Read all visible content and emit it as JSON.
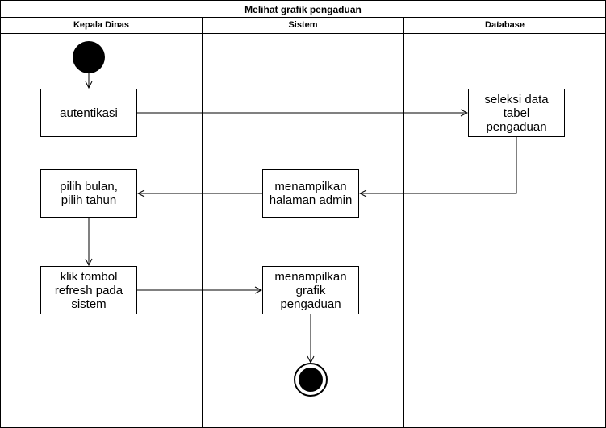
{
  "title": "Melihat grafik pengaduan",
  "lanes": [
    "Kepala Dinas",
    "Sistem",
    "Database"
  ],
  "activities": {
    "autentikasi": "autentikasi",
    "seleksi": "seleksi data\ntabel\npengaduan",
    "pilih": "pilih bulan,\npilih tahun",
    "menampilkan_admin": "menampilkan\nhalaman admin",
    "klik": "klik tombol\nrefresh pada\nsistem",
    "menampilkan_grafik": "menampilkan\ngrafik\npengaduan"
  }
}
